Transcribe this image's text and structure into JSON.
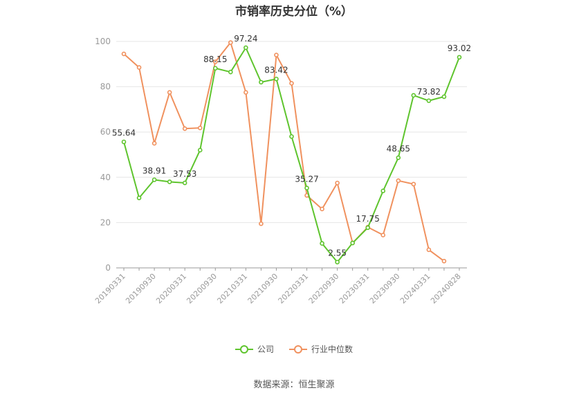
{
  "chart_data": {
    "type": "line",
    "title": "市销率历史分位（%）",
    "ylim": [
      0,
      100
    ],
    "yticks": [
      0,
      20,
      40,
      60,
      80,
      100
    ],
    "x_tick_labels": [
      "20190331",
      "20190930",
      "20200331",
      "20200930",
      "20210331",
      "20210930",
      "20220331",
      "20220930",
      "20230331",
      "20230930",
      "20240331",
      "20240828"
    ],
    "x": [
      "20190331",
      "20190630",
      "20190930",
      "20191231",
      "20200331",
      "20200630",
      "20200930",
      "20201231",
      "20210331",
      "20210630",
      "20210930",
      "20211231",
      "20220331",
      "20220630",
      "20220930",
      "20221231",
      "20230331",
      "20230630",
      "20230930",
      "20231231",
      "20240331",
      "20240630",
      "20240828"
    ],
    "grid": true,
    "legend_position": "bottom",
    "series": [
      {
        "name": "公司",
        "color": "#5ec42d",
        "values": [
          55.64,
          30.9,
          38.91,
          38.0,
          37.53,
          52.0,
          88.15,
          86.5,
          97.24,
          82.0,
          83.42,
          58.0,
          35.27,
          10.8,
          2.55,
          11.0,
          17.75,
          34.0,
          48.65,
          76.2,
          73.82,
          75.6,
          93.02
        ],
        "labels": {
          "0": "55.64",
          "2": "38.91",
          "4": "37.53",
          "6": "88.15",
          "8": "97.24",
          "10": "83.42",
          "12": "35.27",
          "14": "2.55",
          "16": "17.75",
          "18": "48.65",
          "20": "73.82",
          "22": "93.02"
        }
      },
      {
        "name": "行业中位数",
        "color": "#f0915e",
        "values": [
          94.5,
          88.5,
          55.0,
          77.5,
          61.5,
          61.8,
          91.0,
          99.5,
          77.5,
          19.5,
          94.0,
          81.5,
          32.0,
          26.0,
          37.5,
          11.0,
          18.0,
          14.5,
          38.5,
          37.0,
          8.0,
          3.0,
          null
        ]
      }
    ]
  },
  "source": "数据来源：恒生聚源"
}
